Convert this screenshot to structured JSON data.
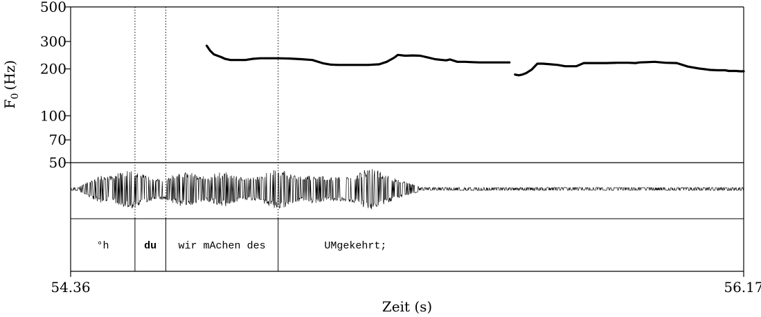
{
  "chart_data": {
    "type": "line",
    "ylabel": "F",
    "ylabel_sub": "0",
    "ylabel_unit": "(Hz)",
    "xlabel": "Zeit (s)",
    "y_scale": "log",
    "ylim": [
      50,
      500
    ],
    "xlim": [
      54.36,
      56.17
    ],
    "y_ticks": [
      {
        "value": 500,
        "label": "500"
      },
      {
        "value": 300,
        "label": "300"
      },
      {
        "value": 200,
        "label": "200"
      },
      {
        "value": 100,
        "label": "100"
      },
      {
        "value": 70,
        "label": "70"
      },
      {
        "value": 50,
        "label": "50"
      }
    ],
    "x_ticks": [
      {
        "value": 54.36,
        "label": "54.36"
      },
      {
        "value": 56.17,
        "label": "56.17"
      }
    ],
    "series": [
      {
        "x": [
          54.726,
          54.735,
          54.745,
          54.755,
          54.765,
          54.775,
          54.79,
          54.81,
          54.83,
          54.85,
          54.87,
          54.89,
          54.92,
          54.95,
          54.98,
          55.01,
          55.04,
          55.06,
          55.08,
          55.1,
          55.13,
          55.16,
          55.19,
          55.21,
          55.23,
          55.24,
          55.26,
          55.28,
          55.3,
          55.32,
          55.34,
          55.36,
          55.37,
          55.38,
          55.4,
          55.42,
          55.44,
          55.46,
          55.48,
          55.5,
          55.52,
          55.54
        ],
        "y": [
          282,
          262,
          248,
          243,
          238,
          232,
          228,
          228,
          228,
          232,
          234,
          234,
          234,
          233,
          231,
          228,
          217,
          213,
          212,
          212,
          212,
          212,
          214,
          222,
          236,
          246,
          243,
          244,
          243,
          237,
          231,
          228,
          227,
          230,
          222,
          222,
          221,
          220,
          220,
          220,
          220,
          220
        ]
      },
      {
        "x": [
          55.555,
          55.565,
          55.575,
          55.585,
          55.6,
          55.615,
          55.63,
          55.65,
          55.67,
          55.69,
          55.71,
          55.72,
          55.74,
          55.77,
          55.8,
          55.83,
          55.86,
          55.88,
          55.89,
          55.91,
          55.93,
          55.96,
          55.99,
          56.02,
          56.05,
          56.08,
          56.1,
          56.12,
          56.13,
          56.15,
          56.16,
          56.17
        ],
        "y": [
          184,
          182,
          184,
          188,
          198,
          216,
          216,
          214,
          212,
          208,
          208,
          208,
          218,
          218,
          218,
          219,
          219,
          218,
          220,
          221,
          222,
          219,
          218,
          207,
          201,
          197,
          196,
          196,
          194,
          194,
          193,
          193
        ]
      }
    ],
    "intervals": [
      {
        "start": 54.36,
        "end": 54.533,
        "label": "°h",
        "bold": false
      },
      {
        "start": 54.533,
        "end": 54.616,
        "label": "du",
        "bold": true
      },
      {
        "start": 54.616,
        "end": 54.918,
        "label": "wir mAchen des",
        "bold": false
      },
      {
        "start": 54.918,
        "end": 55.334,
        "label": "UMgekehrt;",
        "bold": false
      }
    ],
    "waveform_speech_span": [
      54.385,
      55.295
    ],
    "grid": false,
    "legend": "none"
  }
}
